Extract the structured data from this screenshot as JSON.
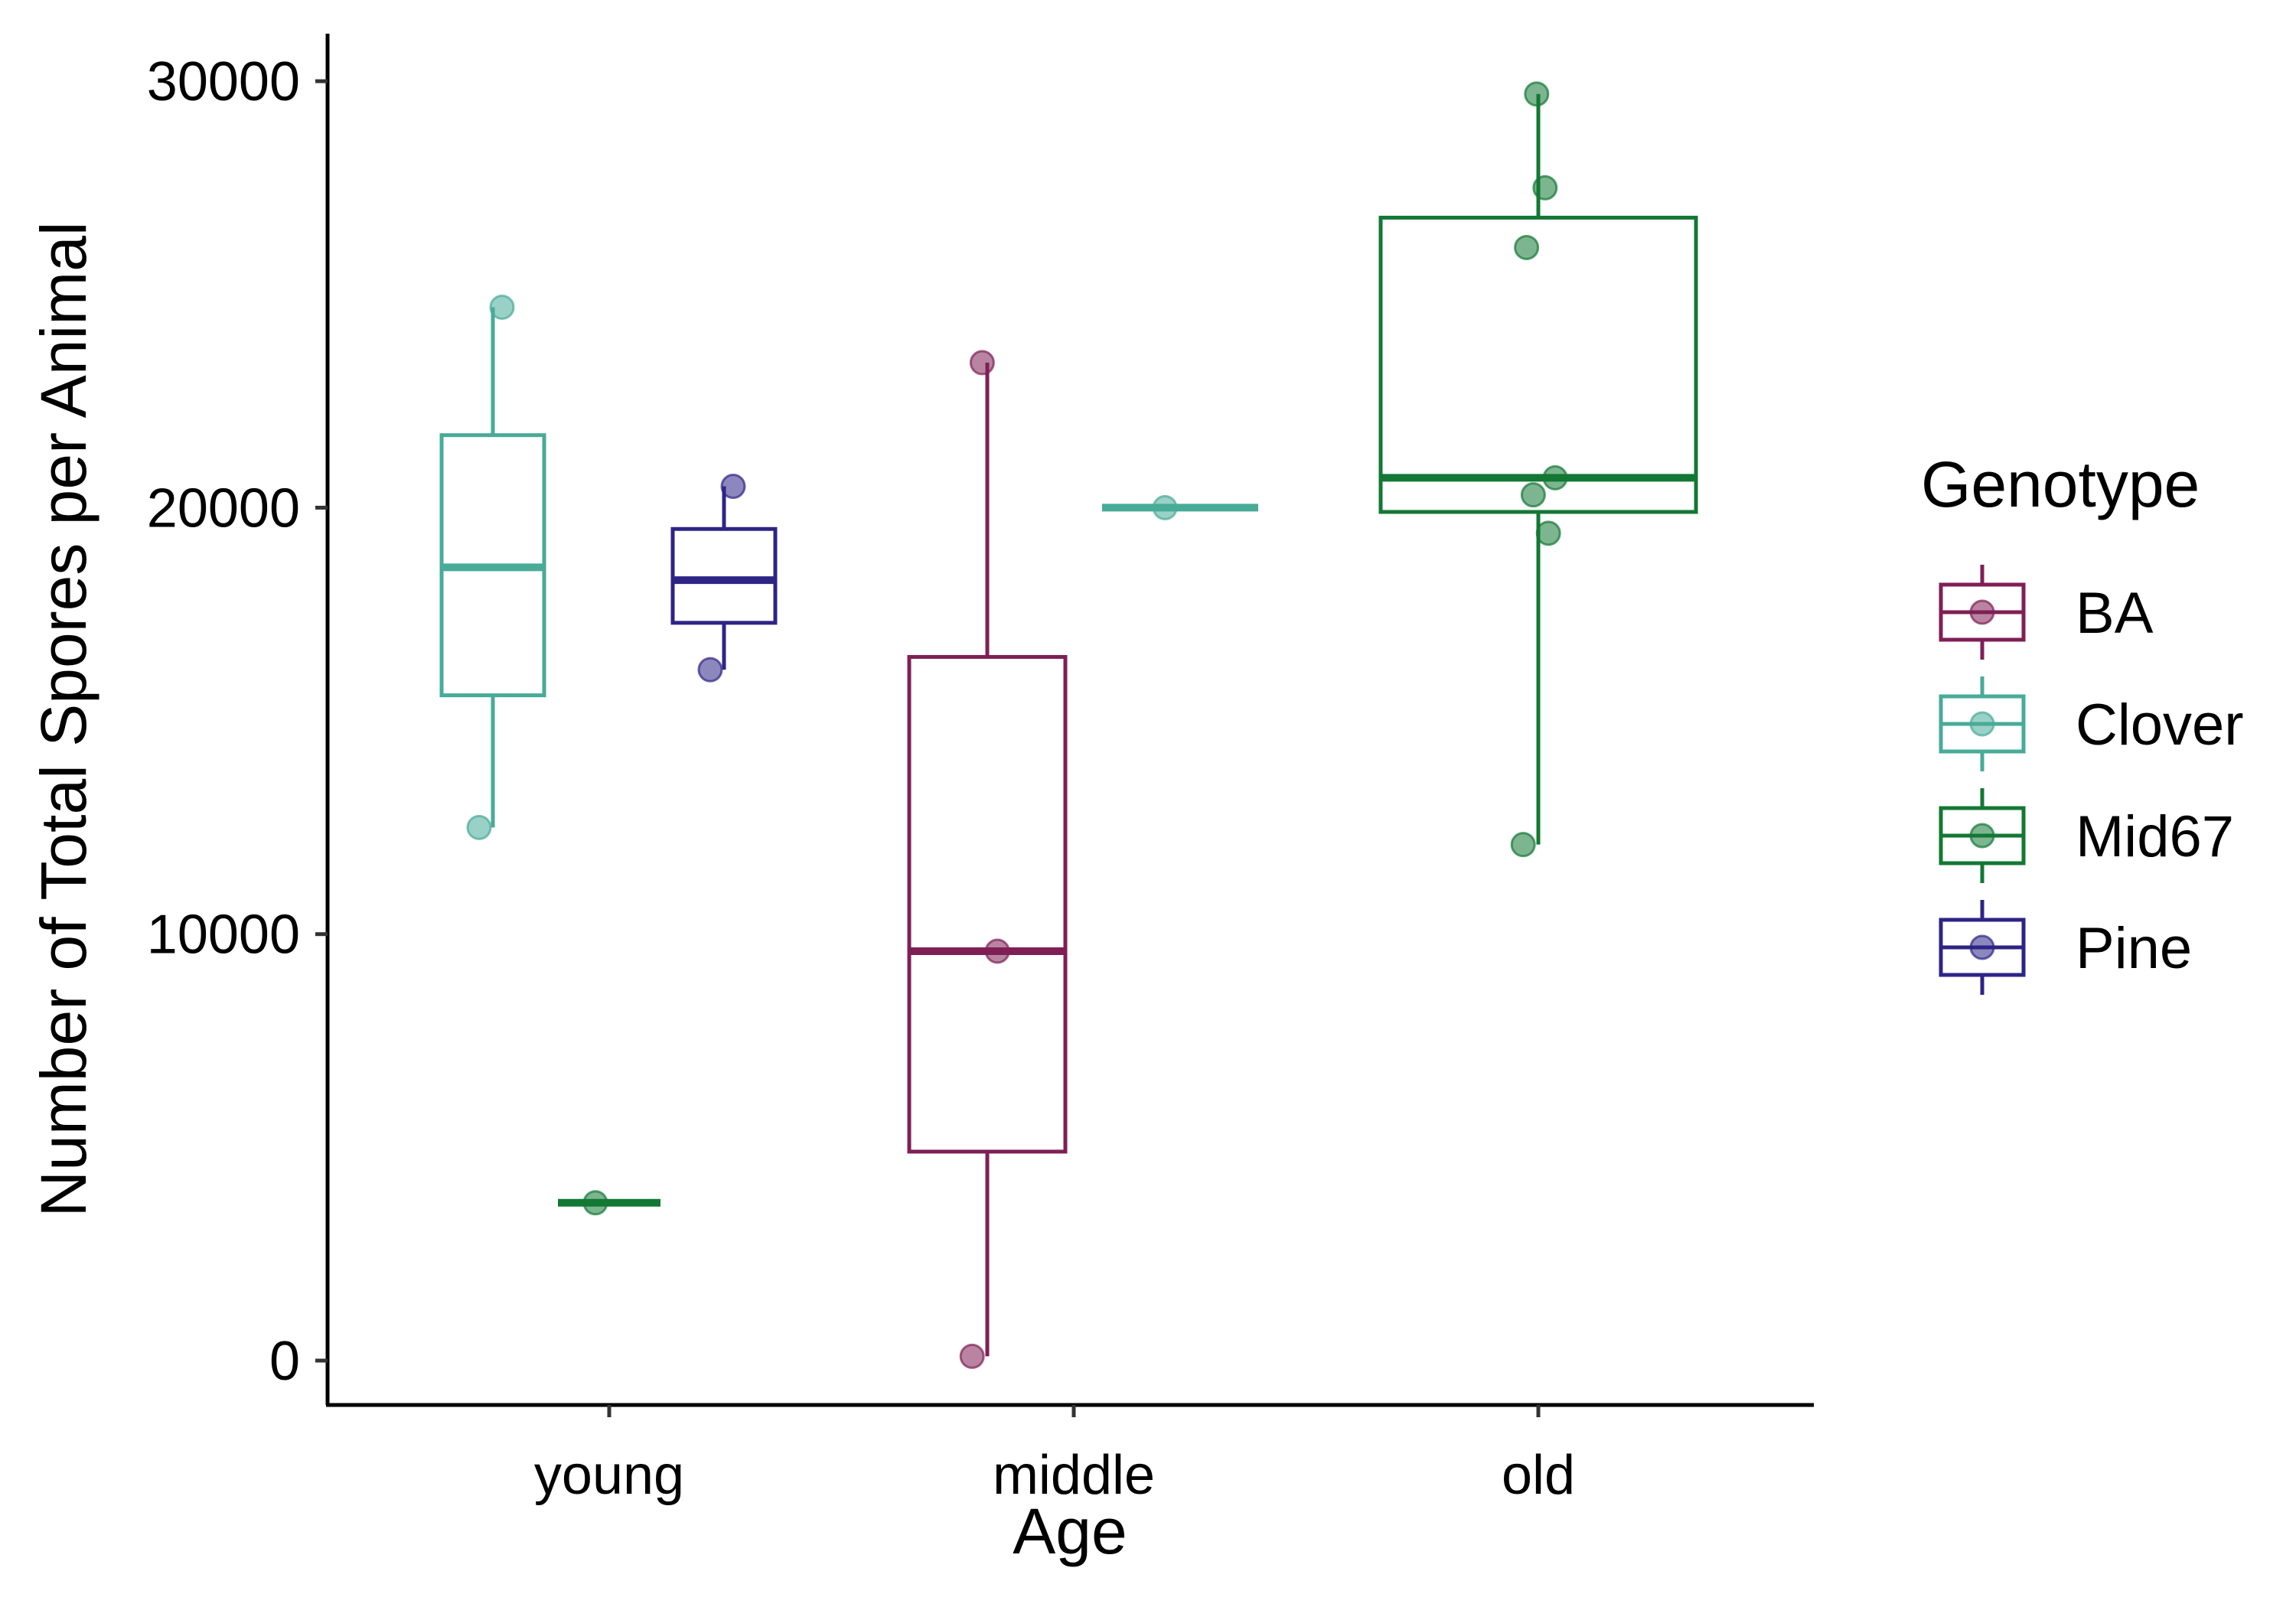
{
  "chart_data": {
    "type": "boxplot",
    "xlabel": "Age",
    "ylabel": "Number of Total Spores per Animal",
    "categories": [
      "young",
      "middle",
      "old"
    ],
    "ylim": [
      -1300,
      31000
    ],
    "yticks": [
      0,
      10000,
      20000,
      30000
    ],
    "grid": false,
    "legend": {
      "title": "Genotype",
      "position": "right",
      "entries": [
        "BA",
        "Clover",
        "Mid67",
        "Pine"
      ]
    },
    "series": [
      {
        "name": "BA",
        "color": "#7f1f55",
        "boxes": [
          {
            "category": "middle",
            "min": 100,
            "q1": 4900,
            "median": 9600,
            "q3": 16500,
            "max": 23400,
            "points": [
              100,
              9600,
              23400
            ]
          }
        ]
      },
      {
        "name": "Clover",
        "color": "#47ab98",
        "boxes": [
          {
            "category": "young",
            "min": 12500,
            "q1": 15600,
            "median": 18600,
            "q3": 21700,
            "max": 24700,
            "points": [
              12500,
              24700
            ]
          },
          {
            "category": "middle",
            "min": 20000,
            "q1": 20000,
            "median": 20000,
            "q3": 20000,
            "max": 20000,
            "points": [
              20000
            ]
          }
        ]
      },
      {
        "name": "Mid67",
        "color": "#137834",
        "boxes": [
          {
            "category": "young",
            "min": 3700,
            "q1": 3700,
            "median": 3700,
            "q3": 3700,
            "max": 3700,
            "points": [
              3700
            ]
          },
          {
            "category": "old",
            "min": 12100,
            "q1": 19900,
            "median": 20700,
            "q3": 26800,
            "max": 29700,
            "points": [
              12100,
              19400,
              20300,
              20700,
              26100,
              27500,
              29700
            ]
          }
        ]
      },
      {
        "name": "Pine",
        "color": "#2e2486",
        "boxes": [
          {
            "category": "young",
            "min": 16200,
            "q1": 17300,
            "median": 18300,
            "q3": 19500,
            "max": 20500,
            "points": [
              16200,
              20500
            ]
          }
        ]
      }
    ]
  }
}
